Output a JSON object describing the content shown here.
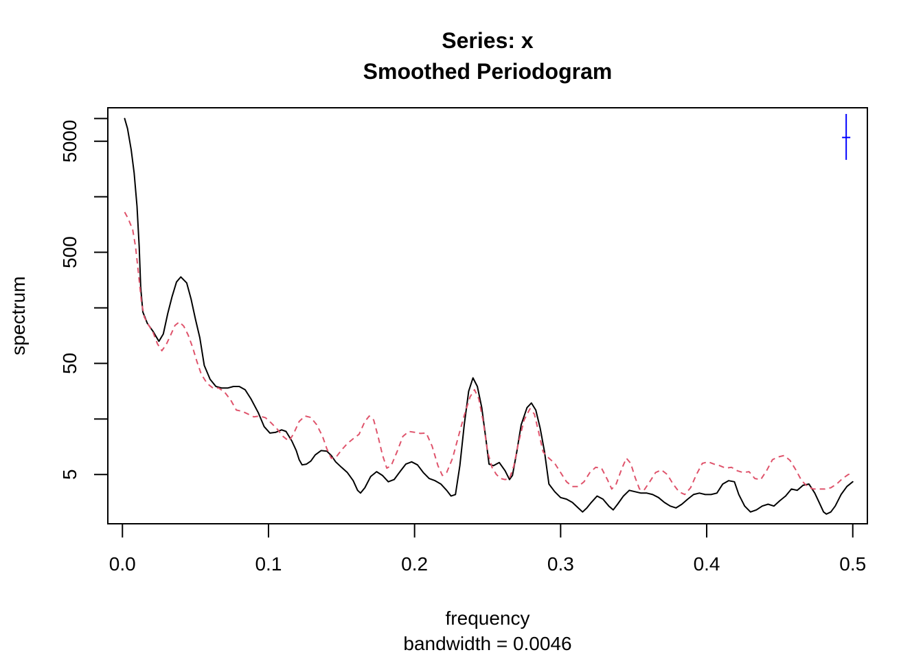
{
  "chart_data": {
    "type": "line",
    "title": "Series: x",
    "subtitle": "Smoothed Periodogram",
    "xlabel": "frequency",
    "xsublabel": "bandwidth = 0.0046",
    "ylabel": "spectrum",
    "xlim": [
      -0.01,
      0.51
    ],
    "ylim": [
      1.8,
      10000
    ],
    "log_y": true,
    "x_ticks": [
      "0.0",
      "0.1",
      "0.2",
      "0.3",
      "0.4",
      "0.5"
    ],
    "y_tick_labels": [
      "5",
      "50",
      "500",
      "5000"
    ],
    "y_tick_values": [
      5,
      50,
      500,
      5000
    ],
    "y_minor_ticks": [
      15.8,
      158,
      1580,
      8000
    ],
    "legend": "none",
    "grid": false,
    "confidence_bar": {
      "x": 0.4955,
      "y_center": 5400,
      "y_low": 3400,
      "y_high": 8800,
      "color": "#0000ff"
    },
    "series": [
      {
        "style": "solid",
        "color": "#000000",
        "points": [
          [
            0.0015,
            8000
          ],
          [
            0.0035,
            6500
          ],
          [
            0.006,
            4200
          ],
          [
            0.008,
            2600
          ],
          [
            0.01,
            1300
          ],
          [
            0.0115,
            560
          ],
          [
            0.0125,
            240
          ],
          [
            0.014,
            145
          ],
          [
            0.017,
            115
          ],
          [
            0.021,
            97
          ],
          [
            0.025,
            79
          ],
          [
            0.028,
            92
          ],
          [
            0.031,
            140
          ],
          [
            0.034,
            200
          ],
          [
            0.037,
            270
          ],
          [
            0.04,
            300
          ],
          [
            0.044,
            265
          ],
          [
            0.047,
            190
          ],
          [
            0.05,
            125
          ],
          [
            0.053,
            85
          ],
          [
            0.056,
            48
          ],
          [
            0.06,
            36
          ],
          [
            0.064,
            31
          ],
          [
            0.068,
            30
          ],
          [
            0.072,
            30
          ],
          [
            0.076,
            31
          ],
          [
            0.08,
            31
          ],
          [
            0.084,
            29
          ],
          [
            0.088,
            24
          ],
          [
            0.093,
            18
          ],
          [
            0.097,
            13.5
          ],
          [
            0.101,
            11.8
          ],
          [
            0.105,
            12
          ],
          [
            0.109,
            12.6
          ],
          [
            0.112,
            12.2
          ],
          [
            0.116,
            10
          ],
          [
            0.119,
            8.2
          ],
          [
            0.121,
            6.8
          ],
          [
            0.123,
            6.1
          ],
          [
            0.126,
            6.2
          ],
          [
            0.129,
            6.6
          ],
          [
            0.132,
            7.5
          ],
          [
            0.136,
            8.2
          ],
          [
            0.14,
            8.1
          ],
          [
            0.143,
            7.4
          ],
          [
            0.146,
            6.5
          ],
          [
            0.15,
            5.8
          ],
          [
            0.154,
            5.2
          ],
          [
            0.158,
            4.4
          ],
          [
            0.161,
            3.6
          ],
          [
            0.163,
            3.4
          ],
          [
            0.166,
            3.8
          ],
          [
            0.17,
            4.8
          ],
          [
            0.174,
            5.3
          ],
          [
            0.178,
            4.9
          ],
          [
            0.182,
            4.3
          ],
          [
            0.186,
            4.5
          ],
          [
            0.19,
            5.3
          ],
          [
            0.194,
            6.2
          ],
          [
            0.198,
            6.5
          ],
          [
            0.202,
            6.1
          ],
          [
            0.206,
            5.2
          ],
          [
            0.21,
            4.6
          ],
          [
            0.214,
            4.4
          ],
          [
            0.218,
            4.1
          ],
          [
            0.222,
            3.6
          ],
          [
            0.225,
            3.2
          ],
          [
            0.228,
            3.3
          ],
          [
            0.231,
            6
          ],
          [
            0.234,
            14
          ],
          [
            0.237,
            28
          ],
          [
            0.24,
            37
          ],
          [
            0.243,
            31
          ],
          [
            0.246,
            20
          ],
          [
            0.249,
            10
          ],
          [
            0.251,
            6.2
          ],
          [
            0.254,
            6
          ],
          [
            0.258,
            6.4
          ],
          [
            0.262,
            5.4
          ],
          [
            0.265,
            4.5
          ],
          [
            0.267,
            4.9
          ],
          [
            0.27,
            8
          ],
          [
            0.273,
            14
          ],
          [
            0.277,
            20
          ],
          [
            0.28,
            22
          ],
          [
            0.283,
            19
          ],
          [
            0.286,
            13
          ],
          [
            0.289,
            8
          ],
          [
            0.292,
            4.1
          ],
          [
            0.296,
            3.5
          ],
          [
            0.3,
            3.1
          ],
          [
            0.304,
            3.0
          ],
          [
            0.308,
            2.8
          ],
          [
            0.312,
            2.5
          ],
          [
            0.315,
            2.3
          ],
          [
            0.318,
            2.5
          ],
          [
            0.321,
            2.8
          ],
          [
            0.325,
            3.2
          ],
          [
            0.329,
            3.0
          ],
          [
            0.333,
            2.6
          ],
          [
            0.336,
            2.4
          ],
          [
            0.339,
            2.7
          ],
          [
            0.343,
            3.2
          ],
          [
            0.347,
            3.6
          ],
          [
            0.351,
            3.5
          ],
          [
            0.355,
            3.4
          ],
          [
            0.359,
            3.4
          ],
          [
            0.363,
            3.3
          ],
          [
            0.367,
            3.1
          ],
          [
            0.371,
            2.8
          ],
          [
            0.375,
            2.6
          ],
          [
            0.379,
            2.5
          ],
          [
            0.383,
            2.7
          ],
          [
            0.387,
            3.0
          ],
          [
            0.391,
            3.3
          ],
          [
            0.395,
            3.4
          ],
          [
            0.399,
            3.3
          ],
          [
            0.403,
            3.3
          ],
          [
            0.407,
            3.4
          ],
          [
            0.411,
            4.1
          ],
          [
            0.415,
            4.4
          ],
          [
            0.419,
            4.3
          ],
          [
            0.422,
            3.3
          ],
          [
            0.426,
            2.6
          ],
          [
            0.43,
            2.3
          ],
          [
            0.434,
            2.4
          ],
          [
            0.438,
            2.6
          ],
          [
            0.442,
            2.7
          ],
          [
            0.446,
            2.6
          ],
          [
            0.45,
            2.9
          ],
          [
            0.454,
            3.2
          ],
          [
            0.458,
            3.7
          ],
          [
            0.462,
            3.6
          ],
          [
            0.466,
            4.0
          ],
          [
            0.47,
            4.1
          ],
          [
            0.474,
            3.4
          ],
          [
            0.477,
            2.8
          ],
          [
            0.48,
            2.3
          ],
          [
            0.482,
            2.2
          ],
          [
            0.485,
            2.3
          ],
          [
            0.488,
            2.6
          ],
          [
            0.492,
            3.3
          ],
          [
            0.496,
            3.9
          ],
          [
            0.5,
            4.3
          ]
        ]
      },
      {
        "style": "dashed",
        "color": "#df536b",
        "points": [
          [
            0.0015,
            1150
          ],
          [
            0.004,
            1000
          ],
          [
            0.007,
            800
          ],
          [
            0.009,
            560
          ],
          [
            0.011,
            320
          ],
          [
            0.013,
            180
          ],
          [
            0.015,
            130
          ],
          [
            0.018,
            110
          ],
          [
            0.021,
            95
          ],
          [
            0.024,
            75
          ],
          [
            0.027,
            65
          ],
          [
            0.03,
            74
          ],
          [
            0.033,
            90
          ],
          [
            0.036,
            110
          ],
          [
            0.039,
            118
          ],
          [
            0.042,
            108
          ],
          [
            0.045,
            90
          ],
          [
            0.048,
            70
          ],
          [
            0.051,
            52
          ],
          [
            0.054,
            40
          ],
          [
            0.058,
            33
          ],
          [
            0.062,
            30
          ],
          [
            0.066,
            30
          ],
          [
            0.07,
            27.5
          ],
          [
            0.074,
            23.5
          ],
          [
            0.078,
            19
          ],
          [
            0.082,
            18.5
          ],
          [
            0.086,
            17.5
          ],
          [
            0.09,
            16.5
          ],
          [
            0.094,
            16.8
          ],
          [
            0.098,
            16.2
          ],
          [
            0.102,
            14.5
          ],
          [
            0.106,
            12.8
          ],
          [
            0.11,
            11
          ],
          [
            0.114,
            10
          ],
          [
            0.117,
            11.5
          ],
          [
            0.121,
            15
          ],
          [
            0.125,
            16.8
          ],
          [
            0.129,
            16.3
          ],
          [
            0.133,
            14
          ],
          [
            0.137,
            11
          ],
          [
            0.14,
            8.5
          ],
          [
            0.143,
            7.0
          ],
          [
            0.146,
            7.1
          ],
          [
            0.15,
            8.3
          ],
          [
            0.154,
            9.5
          ],
          [
            0.158,
            10.5
          ],
          [
            0.162,
            11.5
          ],
          [
            0.166,
            15
          ],
          [
            0.169,
            16.8
          ],
          [
            0.172,
            15.5
          ],
          [
            0.175,
            11
          ],
          [
            0.178,
            7.5
          ],
          [
            0.181,
            5.7
          ],
          [
            0.184,
            6
          ],
          [
            0.188,
            8
          ],
          [
            0.192,
            11
          ],
          [
            0.196,
            12.2
          ],
          [
            0.2,
            12
          ],
          [
            0.204,
            11.7
          ],
          [
            0.208,
            11.8
          ],
          [
            0.212,
            9
          ],
          [
            0.216,
            6
          ],
          [
            0.219,
            4.9
          ],
          [
            0.222,
            5.2
          ],
          [
            0.226,
            7
          ],
          [
            0.23,
            11
          ],
          [
            0.234,
            17
          ],
          [
            0.238,
            25
          ],
          [
            0.241,
            29
          ],
          [
            0.244,
            24
          ],
          [
            0.247,
            15
          ],
          [
            0.25,
            8
          ],
          [
            0.253,
            5.8
          ],
          [
            0.256,
            5
          ],
          [
            0.259,
            4.6
          ],
          [
            0.262,
            4.5
          ],
          [
            0.265,
            4.6
          ],
          [
            0.268,
            6
          ],
          [
            0.271,
            9.5
          ],
          [
            0.275,
            15.5
          ],
          [
            0.279,
            19.5
          ],
          [
            0.282,
            17.5
          ],
          [
            0.285,
            12
          ],
          [
            0.288,
            8
          ],
          [
            0.292,
            7
          ],
          [
            0.296,
            6.3
          ],
          [
            0.3,
            5.2
          ],
          [
            0.304,
            4.3
          ],
          [
            0.308,
            3.9
          ],
          [
            0.312,
            3.9
          ],
          [
            0.316,
            4.3
          ],
          [
            0.32,
            5.2
          ],
          [
            0.324,
            5.8
          ],
          [
            0.328,
            5.7
          ],
          [
            0.332,
            4.5
          ],
          [
            0.335,
            3.7
          ],
          [
            0.338,
            4.1
          ],
          [
            0.342,
            5.7
          ],
          [
            0.345,
            7
          ],
          [
            0.348,
            6.3
          ],
          [
            0.351,
            4.7
          ],
          [
            0.354,
            3.7
          ],
          [
            0.357,
            3.6
          ],
          [
            0.361,
            4.3
          ],
          [
            0.365,
            5.2
          ],
          [
            0.369,
            5.5
          ],
          [
            0.373,
            5.0
          ],
          [
            0.377,
            4.1
          ],
          [
            0.381,
            3.5
          ],
          [
            0.385,
            3.3
          ],
          [
            0.389,
            3.8
          ],
          [
            0.393,
            5.0
          ],
          [
            0.397,
            6.3
          ],
          [
            0.401,
            6.5
          ],
          [
            0.405,
            6.2
          ],
          [
            0.409,
            6.0
          ],
          [
            0.413,
            5.7
          ],
          [
            0.417,
            5.8
          ],
          [
            0.421,
            5.4
          ],
          [
            0.425,
            5.2
          ],
          [
            0.429,
            5.3
          ],
          [
            0.433,
            4.6
          ],
          [
            0.437,
            4.5
          ],
          [
            0.441,
            5.4
          ],
          [
            0.445,
            6.8
          ],
          [
            0.449,
            7.2
          ],
          [
            0.453,
            7.4
          ],
          [
            0.457,
            6.7
          ],
          [
            0.461,
            5.5
          ],
          [
            0.465,
            4.4
          ],
          [
            0.469,
            3.9
          ],
          [
            0.473,
            3.7
          ],
          [
            0.477,
            3.7
          ],
          [
            0.481,
            3.7
          ],
          [
            0.485,
            3.8
          ],
          [
            0.489,
            4.1
          ],
          [
            0.493,
            4.6
          ],
          [
            0.497,
            5.0
          ],
          [
            0.5,
            5.1
          ]
        ]
      }
    ]
  }
}
